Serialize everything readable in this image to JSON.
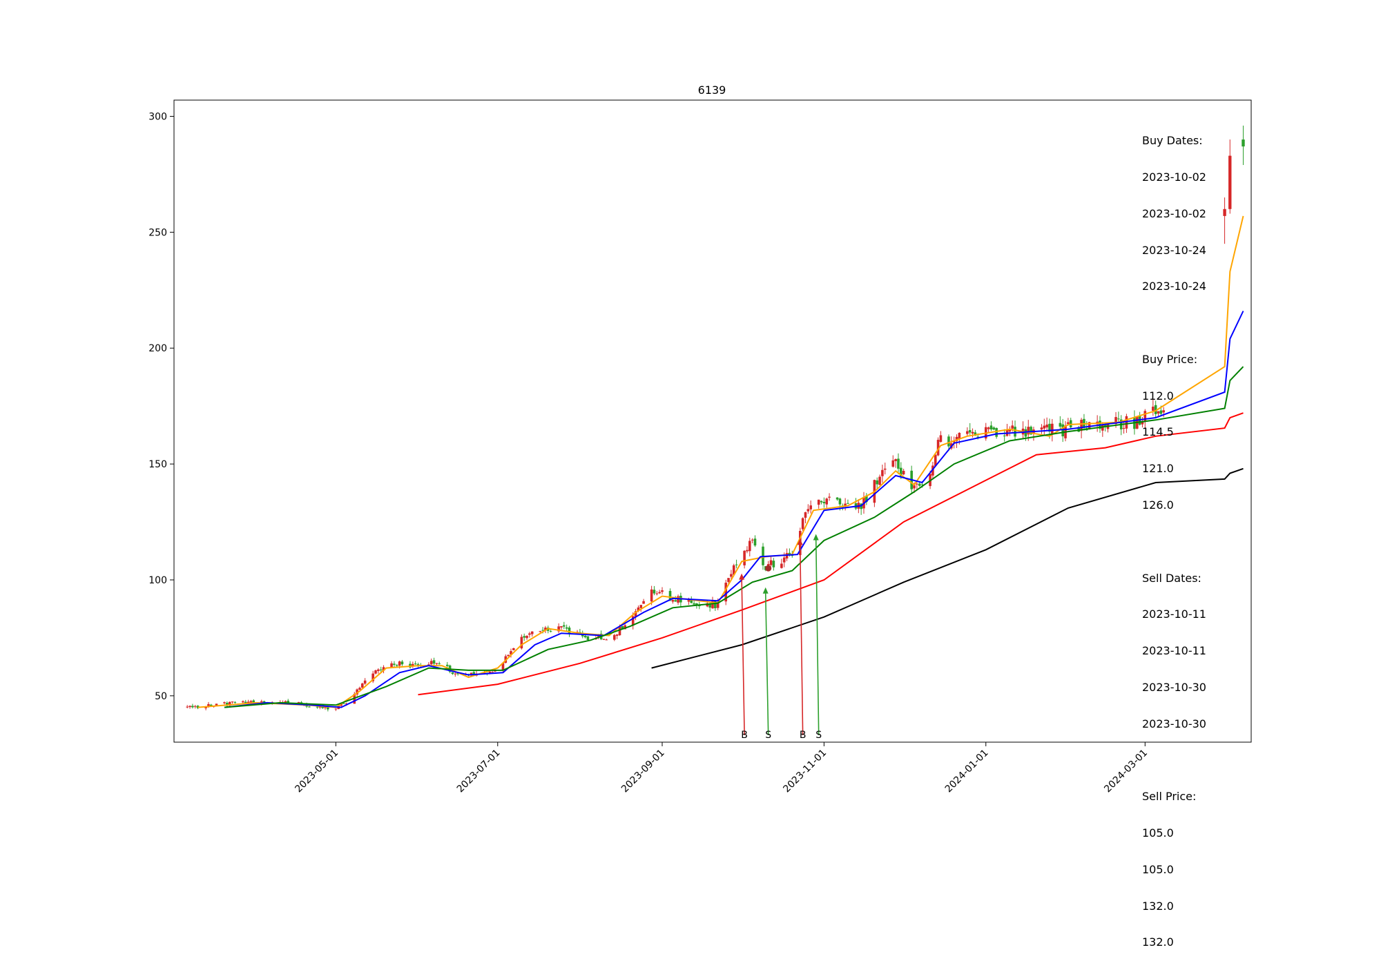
{
  "chart_data": {
    "type": "candlestick",
    "title": "6139",
    "xlabel": "",
    "ylabel": "",
    "x_range": [
      "2023-03-01",
      "2024-04-10"
    ],
    "ylim": [
      30,
      307
    ],
    "y_ticks": [
      50,
      100,
      150,
      200,
      250,
      300
    ],
    "x_ticks": [
      "2023-05-01",
      "2023-07-01",
      "2023-09-01",
      "2023-11-01",
      "2024-01-01",
      "2024-03-01"
    ],
    "grid": false,
    "candle_colors": {
      "up": "#d62728",
      "down": "#2ca02c"
    },
    "price_path": [
      [
        "2023-03-05",
        45
      ],
      [
        "2023-03-20",
        46.5
      ],
      [
        "2023-04-05",
        47.5
      ],
      [
        "2023-04-15",
        47
      ],
      [
        "2023-04-22",
        45
      ],
      [
        "2023-05-01",
        45
      ],
      [
        "2023-05-06",
        47
      ],
      [
        "2023-05-10",
        54
      ],
      [
        "2023-05-16",
        60
      ],
      [
        "2023-05-22",
        64
      ],
      [
        "2023-06-01",
        63
      ],
      [
        "2023-06-10",
        65
      ],
      [
        "2023-06-14",
        59
      ],
      [
        "2023-06-25",
        59
      ],
      [
        "2023-07-01",
        62
      ],
      [
        "2023-07-10",
        74
      ],
      [
        "2023-07-17",
        79
      ],
      [
        "2023-07-25",
        79
      ],
      [
        "2023-08-05",
        75
      ],
      [
        "2023-08-14",
        76
      ],
      [
        "2023-08-22",
        87
      ],
      [
        "2023-08-28",
        95
      ],
      [
        "2023-09-10",
        91
      ],
      [
        "2023-09-22",
        89
      ],
      [
        "2023-09-25",
        97
      ],
      [
        "2023-10-01",
        113
      ],
      [
        "2023-10-05",
        116
      ],
      [
        "2023-10-10",
        106
      ],
      [
        "2023-10-20",
        111
      ],
      [
        "2023-10-24",
        126
      ],
      [
        "2023-10-27",
        133
      ],
      [
        "2023-11-03",
        134
      ],
      [
        "2023-11-15",
        131
      ],
      [
        "2023-11-22",
        146
      ],
      [
        "2023-11-26",
        155
      ],
      [
        "2023-12-03",
        140
      ],
      [
        "2023-12-10",
        140
      ],
      [
        "2023-12-15",
        162
      ],
      [
        "2023-12-20",
        160
      ],
      [
        "2023-12-25",
        163
      ],
      [
        "2024-01-05",
        165
      ],
      [
        "2024-01-20",
        164
      ],
      [
        "2024-01-28",
        165
      ],
      [
        "2024-02-15",
        167
      ],
      [
        "2024-02-28",
        168
      ],
      [
        "2024-03-05",
        175
      ],
      [
        "2024-03-07",
        170
      ],
      [
        "2024-03-10",
        172
      ]
    ],
    "late_candles": [
      {
        "date": "2024-03-31",
        "open": 257,
        "close": 260,
        "high": 265,
        "low": 245
      },
      {
        "date": "2024-04-02",
        "open": 260,
        "close": 283,
        "high": 290,
        "low": 258
      },
      {
        "date": "2024-04-07",
        "open": 290,
        "close": 287,
        "high": 296,
        "low": 279
      }
    ],
    "series": [
      {
        "color": "#ffa500",
        "points": [
          [
            "2023-03-10",
            45
          ],
          [
            "2023-04-01",
            47
          ],
          [
            "2023-04-20",
            46
          ],
          [
            "2023-05-01",
            45
          ],
          [
            "2023-05-10",
            52
          ],
          [
            "2023-05-20",
            62
          ],
          [
            "2023-06-01",
            63
          ],
          [
            "2023-06-10",
            63
          ],
          [
            "2023-06-20",
            58
          ],
          [
            "2023-07-01",
            62
          ],
          [
            "2023-07-10",
            72
          ],
          [
            "2023-07-20",
            79
          ],
          [
            "2023-08-01",
            77
          ],
          [
            "2023-08-12",
            76
          ],
          [
            "2023-08-22",
            86
          ],
          [
            "2023-09-01",
            93
          ],
          [
            "2023-09-22",
            90
          ],
          [
            "2023-10-01",
            108
          ],
          [
            "2023-10-10",
            110
          ],
          [
            "2023-10-20",
            111
          ],
          [
            "2023-10-28",
            130
          ],
          [
            "2023-11-10",
            132
          ],
          [
            "2023-11-20",
            138
          ],
          [
            "2023-11-28",
            147
          ],
          [
            "2023-12-05",
            141
          ],
          [
            "2023-12-15",
            158
          ],
          [
            "2023-12-25",
            162
          ],
          [
            "2024-01-10",
            165
          ],
          [
            "2024-01-25",
            162
          ],
          [
            "2024-02-01",
            167
          ],
          [
            "2024-02-20",
            168
          ],
          [
            "2024-03-05",
            173
          ],
          [
            "2024-03-31",
            192
          ],
          [
            "2024-04-02",
            233
          ],
          [
            "2024-04-07",
            257
          ]
        ]
      },
      {
        "color": "#0000ff",
        "points": [
          [
            "2023-03-20",
            45
          ],
          [
            "2023-04-05",
            47
          ],
          [
            "2023-04-22",
            46
          ],
          [
            "2023-05-03",
            45
          ],
          [
            "2023-05-12",
            50
          ],
          [
            "2023-05-25",
            60
          ],
          [
            "2023-06-05",
            63
          ],
          [
            "2023-06-20",
            59
          ],
          [
            "2023-07-03",
            60
          ],
          [
            "2023-07-15",
            72
          ],
          [
            "2023-07-25",
            77
          ],
          [
            "2023-08-10",
            76
          ],
          [
            "2023-08-25",
            86
          ],
          [
            "2023-09-05",
            92
          ],
          [
            "2023-09-22",
            91
          ],
          [
            "2023-10-01",
            100
          ],
          [
            "2023-10-08",
            110
          ],
          [
            "2023-10-22",
            111
          ],
          [
            "2023-11-01",
            130
          ],
          [
            "2023-11-15",
            132
          ],
          [
            "2023-11-28",
            145
          ],
          [
            "2023-12-08",
            142
          ],
          [
            "2023-12-20",
            159
          ],
          [
            "2024-01-05",
            163
          ],
          [
            "2024-02-01",
            165
          ],
          [
            "2024-03-05",
            170
          ],
          [
            "2024-03-31",
            181
          ],
          [
            "2024-04-02",
            204
          ],
          [
            "2024-04-07",
            216
          ]
        ]
      },
      {
        "color": "#008000",
        "points": [
          [
            "2023-03-20",
            45
          ],
          [
            "2023-04-10",
            47
          ],
          [
            "2023-05-01",
            46
          ],
          [
            "2023-05-20",
            54
          ],
          [
            "2023-06-05",
            62
          ],
          [
            "2023-06-20",
            61
          ],
          [
            "2023-07-03",
            61
          ],
          [
            "2023-07-20",
            70
          ],
          [
            "2023-08-05",
            74
          ],
          [
            "2023-08-20",
            80
          ],
          [
            "2023-09-05",
            88
          ],
          [
            "2023-09-22",
            90
          ],
          [
            "2023-10-05",
            99
          ],
          [
            "2023-10-20",
            104
          ],
          [
            "2023-11-01",
            117
          ],
          [
            "2023-11-20",
            127
          ],
          [
            "2023-12-05",
            138
          ],
          [
            "2023-12-20",
            150
          ],
          [
            "2024-01-10",
            160
          ],
          [
            "2024-02-01",
            164
          ],
          [
            "2024-03-05",
            169
          ],
          [
            "2024-03-31",
            174
          ],
          [
            "2024-04-02",
            186
          ],
          [
            "2024-04-07",
            192
          ]
        ]
      },
      {
        "color": "#ff0000",
        "points": [
          [
            "2023-06-01",
            50.5
          ],
          [
            "2023-07-01",
            55
          ],
          [
            "2023-08-01",
            64
          ],
          [
            "2023-09-01",
            75
          ],
          [
            "2023-10-01",
            87
          ],
          [
            "2023-11-01",
            100
          ],
          [
            "2023-12-01",
            125
          ],
          [
            "2024-01-01",
            143
          ],
          [
            "2024-01-20",
            154
          ],
          [
            "2024-02-15",
            157
          ],
          [
            "2024-03-05",
            162
          ],
          [
            "2024-03-31",
            165.5
          ],
          [
            "2024-04-02",
            170
          ],
          [
            "2024-04-07",
            172
          ]
        ]
      },
      {
        "color": "#000000",
        "points": [
          [
            "2023-08-28",
            62
          ],
          [
            "2023-10-01",
            72
          ],
          [
            "2023-11-01",
            84
          ],
          [
            "2023-12-01",
            99
          ],
          [
            "2024-01-01",
            113
          ],
          [
            "2024-02-01",
            131
          ],
          [
            "2024-03-05",
            142
          ],
          [
            "2024-03-31",
            143.5
          ],
          [
            "2024-04-02",
            146
          ],
          [
            "2024-04-07",
            148
          ]
        ]
      }
    ],
    "markers": [
      {
        "label": "B",
        "date": "2023-10-02",
        "price": 112.0,
        "color": "#d62728",
        "tail": 101
      },
      {
        "label": "S",
        "date": "2023-10-11",
        "price": 105.0,
        "color": "#2ca02c",
        "tail": 95
      },
      {
        "label": "B",
        "date": "2023-10-24",
        "price": 126.0,
        "color": "#d62728",
        "tail": 116
      },
      {
        "label": "S",
        "date": "2023-10-30",
        "price": 132.0,
        "color": "#2ca02c",
        "tail": 118
      }
    ],
    "annotation": {
      "buy_dates_label": "Buy Dates:",
      "buy_dates": [
        "2023-10-02",
        "2023-10-02",
        "2023-10-24",
        "2023-10-24"
      ],
      "buy_price_label": "Buy Price:",
      "buy_prices": [
        "112.0",
        "114.5",
        "121.0",
        "126.0"
      ],
      "sell_dates_label": "Sell Dates:",
      "sell_dates": [
        "2023-10-11",
        "2023-10-11",
        "2023-10-30",
        "2023-10-30"
      ],
      "sell_price_label": "Sell Price:",
      "sell_prices": [
        "105.0",
        "105.0",
        "132.0",
        "132.0"
      ]
    }
  }
}
